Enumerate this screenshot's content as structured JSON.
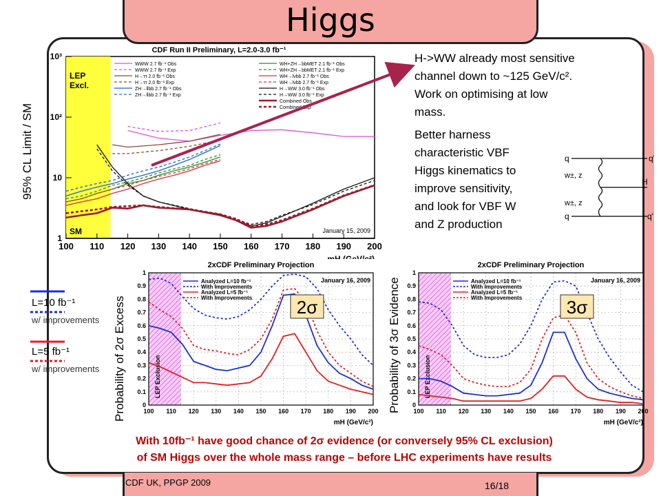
{
  "slide": {
    "title": "Higgs",
    "footer_left": "CDF UK, PPGP 2009",
    "footer_right": "16/18"
  },
  "notes": {
    "hww": [
      "H->WW already most sensitive",
      "channel down to ~125 GeV/c²."
    ],
    "optimise": [
      "Work on optimising at low",
      "mass."
    ],
    "vbf": [
      "Better harness",
      "characteristic VBF",
      "Higgs kinematics to",
      "improve sensitivity,",
      "and look for VBF W",
      "and Z production"
    ]
  },
  "labels": {
    "top_ylabel": "95% CL Limit / SM",
    "excess_ylabel": "Probability of 2σ Excess",
    "evidence_ylabel": "Probability of 3σ Evidence",
    "badge_2sigma": "2σ",
    "badge_3sigma": "3σ"
  },
  "legend_left": {
    "l10": "L=10 fb⁻¹",
    "l10_sub": "w/ improvements",
    "l5": "L=5 fb⁻¹",
    "l5_sub": "w/ improvements"
  },
  "bottom": {
    "line1": "With 10fb⁻¹ have good chance of 2σ evidence (or conversely 95% CL exclusion)",
    "line2": "of SM Higgs over the whole mass range – before LHC experiments have results"
  },
  "feynman": {
    "q_out_top": "q'",
    "q_in_top": "q",
    "w_top": "w±, z",
    "higgs": "H",
    "w_bottom": "w±, z",
    "q_in_bottom": "q",
    "q_out_bottom": "q'"
  },
  "colors": {
    "accent": "#f5a6a2",
    "text_red": "#c00000",
    "arrow": "#a8234b",
    "lep_band": "#ffff3c",
    "lep_hatch": "#e060e0"
  },
  "chart_data": [
    {
      "type": "line",
      "title": "CDF Run II Preliminary, L=2.0-3.0 fb⁻¹",
      "xlabel": "mH (GeV/c²)",
      "ylabel": "95% CL Limit / SM",
      "xlim": [
        100,
        200
      ],
      "ylim": [
        1,
        1000
      ],
      "yscale": "log",
      "x_ticks": [
        100,
        110,
        120,
        130,
        140,
        150,
        160,
        170,
        180,
        190,
        200
      ],
      "y_ticks": [
        1,
        10,
        100,
        1000
      ],
      "y_tick_labels": [
        "1",
        "10",
        "10²",
        "10³"
      ],
      "annotations": [
        "LEP Excl.",
        "SM",
        "January 15, 2009"
      ],
      "series": [
        {
          "name": "WWW 2.7 fb⁻¹ Obs",
          "color": "#e14fe1",
          "dash": false,
          "x": [
            120,
            130,
            140,
            150,
            160,
            170,
            180,
            190,
            200
          ],
          "values": [
            60,
            45,
            40,
            50,
            60,
            62,
            55,
            48,
            48
          ]
        },
        {
          "name": "WWW 2.7 fb⁻¹ Exp",
          "color": "#e14fe1",
          "dash": true,
          "x": [
            120,
            130,
            140,
            150
          ],
          "values": [
            70,
            58,
            60,
            80
          ]
        },
        {
          "name": "H→ττ 2.0 fb⁻¹ Obs",
          "color": "#8c4a2f",
          "dash": false,
          "x": [
            115,
            120,
            130,
            140,
            150
          ],
          "values": [
            35,
            32,
            35,
            40,
            52
          ]
        },
        {
          "name": "H→ττ 2.0 fb⁻¹ Exp",
          "color": "#8c4a2f",
          "dash": true,
          "x": [
            115,
            120,
            130,
            140,
            150
          ],
          "values": [
            25,
            25,
            28,
            33,
            42
          ]
        },
        {
          "name": "ZH→llbb 2.7 fb⁻¹ Obs",
          "color": "#1e64c8",
          "dash": false,
          "x": [
            100,
            105,
            110,
            115,
            120,
            125,
            130,
            135,
            140,
            145,
            150
          ],
          "values": [
            5,
            6,
            7,
            8,
            9.5,
            11,
            13,
            16,
            20,
            26,
            34
          ]
        },
        {
          "name": "ZH→llbb 2.7 fb⁻¹ Exp",
          "color": "#1e64c8",
          "dash": true,
          "x": [
            100,
            105,
            110,
            115,
            120,
            125,
            130,
            135,
            140,
            145,
            150
          ],
          "values": [
            6,
            7,
            8,
            9,
            11,
            13,
            15,
            18,
            22,
            28,
            36
          ]
        },
        {
          "name": "WH+ZH→bbMET 2.1 fb⁻¹ Obs",
          "color": "#2a8a2a",
          "dash": false,
          "x": [
            100,
            105,
            110,
            115,
            120,
            125,
            130,
            135,
            140,
            145,
            150
          ],
          "values": [
            4,
            4.5,
            5.5,
            6.5,
            8,
            9,
            11,
            13,
            15,
            18,
            22
          ]
        },
        {
          "name": "WH+ZH→bbMET 2.1 fb⁻¹ Exp",
          "color": "#2a8a2a",
          "dash": true,
          "x": [
            100,
            105,
            110,
            115,
            120,
            125,
            130,
            135,
            140,
            145,
            150
          ],
          "values": [
            4.5,
            5,
            6,
            7.5,
            8.5,
            10,
            12,
            14,
            16,
            20,
            24
          ]
        },
        {
          "name": "WH→lνbb 2.7 fb⁻¹ Obs",
          "color": "#d83030",
          "dash": false,
          "x": [
            100,
            105,
            110,
            115,
            120,
            125,
            130,
            135,
            140,
            145,
            150
          ],
          "values": [
            3.5,
            4,
            4.5,
            5.5,
            6.5,
            8,
            9.5,
            11,
            13,
            16,
            19
          ]
        },
        {
          "name": "WH→lνbb 2.7 fb⁻¹ Exp",
          "color": "#d83030",
          "dash": true,
          "x": [
            100,
            105,
            110,
            115,
            120,
            125,
            130,
            135,
            140,
            145,
            150
          ],
          "values": [
            4,
            4.5,
            5.5,
            6.5,
            7.5,
            9,
            10.5,
            12,
            14,
            17,
            20
          ]
        },
        {
          "name": "H→WW 3.0 fb⁻¹ Obs",
          "color": "#111111",
          "dash": false,
          "x": [
            110,
            115,
            120,
            125,
            130,
            140,
            150,
            160,
            165,
            170,
            180,
            190,
            200
          ],
          "values": [
            35,
            15,
            8,
            5,
            4,
            3,
            2.5,
            1.6,
            1.8,
            2.3,
            3.8,
            6.5,
            10
          ]
        },
        {
          "name": "H→WW 3.0 fb⁻¹ Exp",
          "color": "#111111",
          "dash": true,
          "x": [
            110,
            115,
            120,
            125,
            130,
            140,
            150,
            160,
            165,
            170,
            180,
            190,
            200
          ],
          "values": [
            30,
            13,
            7.5,
            5,
            4,
            3.1,
            2.5,
            1.7,
            1.9,
            2.4,
            3.6,
            6,
            9
          ]
        },
        {
          "name": "Combined Obs",
          "color": "#9b1b2a",
          "dash": false,
          "x": [
            100,
            105,
            110,
            115,
            120,
            125,
            130,
            140,
            150,
            155,
            160,
            165,
            170,
            180,
            190,
            200
          ],
          "values": [
            2.2,
            2.4,
            2.6,
            3.2,
            3.1,
            3.5,
            3.2,
            3.0,
            2.4,
            2.0,
            1.5,
            1.6,
            1.9,
            3.0,
            5.0,
            7.5
          ]
        },
        {
          "name": "Combined Exp",
          "color": "#9b1b2a",
          "dash": true,
          "x": [
            100,
            105,
            110,
            115,
            120,
            125,
            130,
            140,
            150,
            155,
            160,
            165,
            170,
            180,
            190,
            200
          ],
          "values": [
            2.6,
            2.8,
            3.0,
            3.3,
            3.4,
            3.5,
            3.3,
            3.0,
            2.5,
            2.1,
            1.6,
            1.7,
            2.0,
            3.1,
            5.1,
            7.6
          ]
        }
      ]
    },
    {
      "type": "line",
      "title": "2xCDF Preliminary Projection",
      "xlabel": "mH (GeV/c²)",
      "ylabel": "Probability of 2σ Excess",
      "xlim": [
        100,
        200
      ],
      "ylim": [
        0,
        1
      ],
      "x_ticks": [
        100,
        110,
        120,
        130,
        140,
        150,
        160,
        170,
        180,
        190,
        200
      ],
      "y_ticks": [
        0,
        0.1,
        0.2,
        0.3,
        0.4,
        0.5,
        0.6,
        0.7,
        0.8,
        0.9,
        1
      ],
      "annotations": [
        "January 16, 2009",
        "LEP Exclusion"
      ],
      "series": [
        {
          "name": "Analyzed L=10 fb⁻¹",
          "color": "#1a2fd0",
          "dash": false,
          "x": [
            100,
            105,
            110,
            115,
            120,
            125,
            130,
            135,
            140,
            145,
            150,
            155,
            160,
            165,
            170,
            175,
            180,
            185,
            190,
            195,
            200
          ],
          "values": [
            0.6,
            0.58,
            0.55,
            0.46,
            0.33,
            0.3,
            0.27,
            0.26,
            0.28,
            0.3,
            0.4,
            0.6,
            0.83,
            0.84,
            0.68,
            0.45,
            0.32,
            0.24,
            0.2,
            0.15,
            0.12
          ]
        },
        {
          "name": "With Improvements",
          "color": "#1a2fd0",
          "dash": true,
          "x": [
            100,
            105,
            110,
            115,
            120,
            125,
            130,
            135,
            140,
            145,
            150,
            155,
            160,
            165,
            170,
            175,
            180,
            185,
            190,
            195,
            200
          ],
          "values": [
            0.95,
            0.96,
            0.92,
            0.82,
            0.73,
            0.68,
            0.66,
            0.65,
            0.67,
            0.72,
            0.8,
            0.9,
            0.98,
            0.99,
            0.97,
            0.88,
            0.72,
            0.6,
            0.5,
            0.38,
            0.3
          ]
        },
        {
          "name": "Analyzed L=5 fb⁻¹",
          "color": "#e02020",
          "dash": false,
          "x": [
            100,
            105,
            110,
            115,
            120,
            125,
            130,
            135,
            140,
            145,
            150,
            155,
            160,
            165,
            170,
            175,
            180,
            185,
            190,
            195,
            200
          ],
          "values": [
            0.32,
            0.29,
            0.25,
            0.21,
            0.17,
            0.17,
            0.16,
            0.15,
            0.16,
            0.17,
            0.22,
            0.35,
            0.52,
            0.54,
            0.4,
            0.26,
            0.18,
            0.15,
            0.12,
            0.1,
            0.08
          ]
        },
        {
          "name": "With Improvements",
          "color": "#e02020",
          "dash": true,
          "x": [
            100,
            105,
            110,
            115,
            120,
            125,
            130,
            135,
            140,
            145,
            150,
            155,
            160,
            165,
            170,
            175,
            180,
            185,
            190,
            195,
            200
          ],
          "values": [
            0.78,
            0.72,
            0.67,
            0.58,
            0.45,
            0.42,
            0.41,
            0.39,
            0.38,
            0.42,
            0.5,
            0.65,
            0.87,
            0.88,
            0.78,
            0.56,
            0.4,
            0.3,
            0.24,
            0.18,
            0.14
          ]
        }
      ]
    },
    {
      "type": "line",
      "title": "2xCDF Preliminary Projection",
      "xlabel": "mH (GeV/c²)",
      "ylabel": "Probability of 3σ Evidence",
      "xlim": [
        100,
        200
      ],
      "ylim": [
        0,
        1
      ],
      "x_ticks": [
        100,
        110,
        120,
        130,
        140,
        150,
        160,
        170,
        180,
        190,
        200
      ],
      "y_ticks": [
        0,
        0.1,
        0.2,
        0.3,
        0.4,
        0.5,
        0.6,
        0.7,
        0.8,
        0.9,
        1
      ],
      "annotations": [
        "January 16, 2009",
        "LEP Exclusion"
      ],
      "series": [
        {
          "name": "Analyzed L=10 fb⁻¹",
          "color": "#1a2fd0",
          "dash": false,
          "x": [
            100,
            105,
            110,
            115,
            120,
            125,
            130,
            135,
            140,
            145,
            150,
            155,
            160,
            165,
            170,
            175,
            180,
            185,
            190,
            195,
            200
          ],
          "values": [
            0.2,
            0.2,
            0.18,
            0.14,
            0.09,
            0.08,
            0.07,
            0.07,
            0.08,
            0.09,
            0.15,
            0.32,
            0.55,
            0.55,
            0.35,
            0.2,
            0.12,
            0.09,
            0.07,
            0.05,
            0.04
          ]
        },
        {
          "name": "With Improvements",
          "color": "#1a2fd0",
          "dash": true,
          "x": [
            100,
            105,
            110,
            115,
            120,
            125,
            130,
            135,
            140,
            145,
            150,
            155,
            160,
            165,
            170,
            175,
            180,
            185,
            190,
            195,
            200
          ],
          "values": [
            0.78,
            0.77,
            0.72,
            0.6,
            0.45,
            0.38,
            0.36,
            0.36,
            0.38,
            0.46,
            0.6,
            0.8,
            0.93,
            0.94,
            0.9,
            0.7,
            0.5,
            0.36,
            0.25,
            0.15,
            0.1
          ]
        },
        {
          "name": "Analyzed L=5 fb⁻¹",
          "color": "#e02020",
          "dash": false,
          "x": [
            100,
            105,
            110,
            115,
            120,
            125,
            130,
            135,
            140,
            145,
            150,
            155,
            160,
            165,
            170,
            175,
            180,
            185,
            190,
            195,
            200
          ],
          "values": [
            0.08,
            0.07,
            0.06,
            0.05,
            0.03,
            0.03,
            0.03,
            0.03,
            0.03,
            0.03,
            0.05,
            0.12,
            0.22,
            0.22,
            0.12,
            0.06,
            0.04,
            0.03,
            0.02,
            0.02,
            0.01
          ]
        },
        {
          "name": "With Improvements",
          "color": "#e02020",
          "dash": true,
          "x": [
            100,
            105,
            110,
            115,
            120,
            125,
            130,
            135,
            140,
            145,
            150,
            155,
            160,
            165,
            170,
            175,
            180,
            185,
            190,
            195,
            200
          ],
          "values": [
            0.45,
            0.42,
            0.38,
            0.3,
            0.2,
            0.17,
            0.15,
            0.14,
            0.14,
            0.17,
            0.27,
            0.5,
            0.66,
            0.68,
            0.55,
            0.32,
            0.2,
            0.14,
            0.1,
            0.07,
            0.05
          ]
        }
      ]
    }
  ]
}
